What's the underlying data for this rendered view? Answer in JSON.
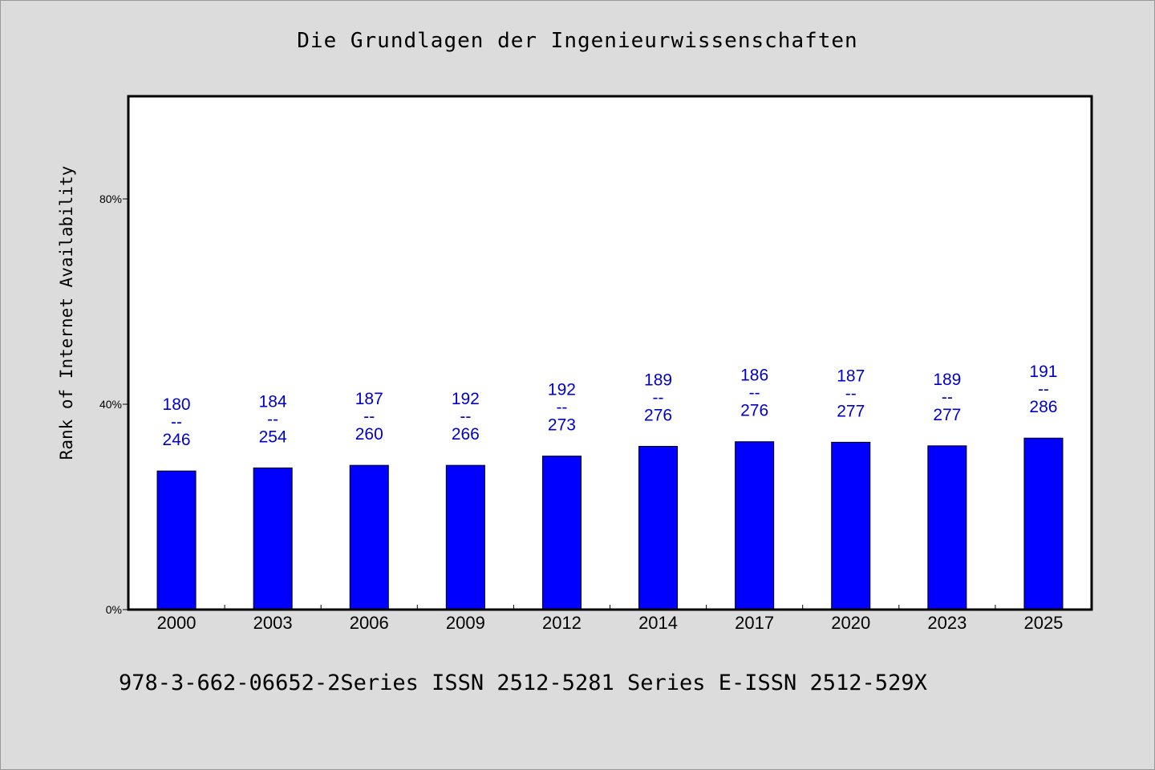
{
  "chart_data": {
    "type": "bar",
    "title": "Die Grundlagen der Ingenieurwissenschaften",
    "ylabel": "Rank of Internet Availability",
    "xlabel": "",
    "categories": [
      "2000",
      "2003",
      "2006",
      "2009",
      "2012",
      "2014",
      "2017",
      "2020",
      "2023",
      "2025"
    ],
    "values": [
      27,
      27.6,
      28.1,
      28.1,
      29.9,
      31.8,
      32.7,
      32.6,
      31.9,
      33.4
    ],
    "value_unit": "%",
    "ylim": [
      0,
      100
    ],
    "yticks": [
      0,
      40,
      80
    ],
    "ytick_labels": [
      "0%",
      "40%",
      "80%"
    ],
    "data_labels": [
      {
        "top": "180",
        "sep": "--",
        "bottom": "246"
      },
      {
        "top": "184",
        "sep": "--",
        "bottom": "254"
      },
      {
        "top": "187",
        "sep": "--",
        "bottom": "260"
      },
      {
        "top": "192",
        "sep": "--",
        "bottom": "266"
      },
      {
        "top": "192",
        "sep": "--",
        "bottom": "273"
      },
      {
        "top": "189",
        "sep": "--",
        "bottom": "276"
      },
      {
        "top": "186",
        "sep": "--",
        "bottom": "276"
      },
      {
        "top": "187",
        "sep": "--",
        "bottom": "277"
      },
      {
        "top": "189",
        "sep": "--",
        "bottom": "277"
      },
      {
        "top": "191",
        "sep": "--",
        "bottom": "286"
      }
    ],
    "grid": false,
    "legend": "none",
    "colors": {
      "bar": "#0000ff",
      "data_label": "#0000cc",
      "plot_bg": "#ffffff",
      "figure_bg": "#dcdcdc"
    }
  },
  "footer": {
    "text": "978-3-662-06652-2Series ISSN 2512-5281 Series E-ISSN 2512-529X"
  }
}
